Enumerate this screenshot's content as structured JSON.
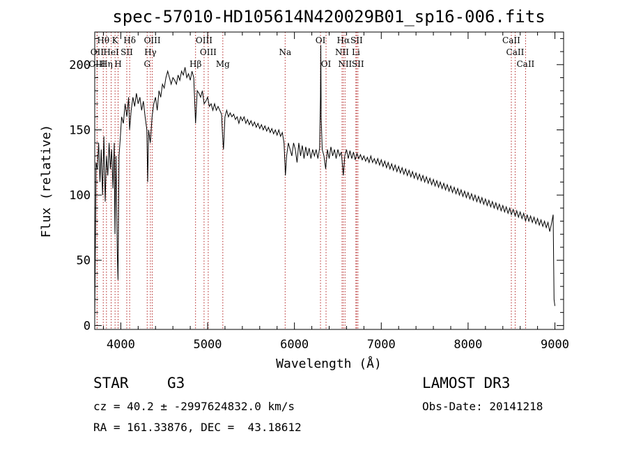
{
  "chart_data": {
    "type": "line",
    "title": "spec-57010-HD105614N420029B01_sp16-006.fits",
    "xlabel": "Wavelength (Å)",
    "ylabel": "Flux (relative)",
    "xlim": [
      3700,
      9100
    ],
    "ylim": [
      -3,
      225
    ],
    "xticks": [
      4000,
      5000,
      6000,
      7000,
      8000,
      9000
    ],
    "yticks": [
      0,
      50,
      100,
      150,
      200
    ],
    "series": [
      {
        "name": "flux",
        "points": [
          [
            3700,
            5
          ],
          [
            3715,
            125
          ],
          [
            3730,
            120
          ],
          [
            3745,
            140
          ],
          [
            3760,
            110
          ],
          [
            3775,
            135
          ],
          [
            3790,
            100
          ],
          [
            3805,
            145
          ],
          [
            3820,
            95
          ],
          [
            3835,
            130
          ],
          [
            3850,
            115
          ],
          [
            3865,
            140
          ],
          [
            3880,
            120
          ],
          [
            3895,
            135
          ],
          [
            3910,
            105
          ],
          [
            3925,
            140
          ],
          [
            3933,
            70
          ],
          [
            3945,
            130
          ],
          [
            3960,
            55
          ],
          [
            3968,
            35
          ],
          [
            3980,
            130
          ],
          [
            3995,
            145
          ],
          [
            4010,
            160
          ],
          [
            4030,
            155
          ],
          [
            4050,
            170
          ],
          [
            4070,
            160
          ],
          [
            4090,
            175
          ],
          [
            4101,
            150
          ],
          [
            4120,
            165
          ],
          [
            4140,
            175
          ],
          [
            4160,
            168
          ],
          [
            4180,
            178
          ],
          [
            4200,
            170
          ],
          [
            4220,
            175
          ],
          [
            4240,
            165
          ],
          [
            4260,
            172
          ],
          [
            4280,
            160
          ],
          [
            4300,
            150
          ],
          [
            4310,
            110
          ],
          [
            4320,
            150
          ],
          [
            4340,
            140
          ],
          [
            4360,
            160
          ],
          [
            4380,
            170
          ],
          [
            4400,
            175
          ],
          [
            4420,
            165
          ],
          [
            4440,
            180
          ],
          [
            4460,
            175
          ],
          [
            4480,
            185
          ],
          [
            4500,
            182
          ],
          [
            4520,
            190
          ],
          [
            4540,
            195
          ],
          [
            4560,
            190
          ],
          [
            4580,
            185
          ],
          [
            4600,
            190
          ],
          [
            4620,
            188
          ],
          [
            4640,
            185
          ],
          [
            4660,
            192
          ],
          [
            4680,
            188
          ],
          [
            4700,
            195
          ],
          [
            4720,
            192
          ],
          [
            4740,
            198
          ],
          [
            4760,
            190
          ],
          [
            4780,
            193
          ],
          [
            4800,
            188
          ],
          [
            4820,
            195
          ],
          [
            4840,
            190
          ],
          [
            4861,
            155
          ],
          [
            4880,
            180
          ],
          [
            4900,
            178
          ],
          [
            4920,
            175
          ],
          [
            4940,
            180
          ],
          [
            4960,
            170
          ],
          [
            4980,
            172
          ],
          [
            5000,
            175
          ],
          [
            5020,
            168
          ],
          [
            5040,
            170
          ],
          [
            5060,
            165
          ],
          [
            5080,
            170
          ],
          [
            5100,
            165
          ],
          [
            5120,
            168
          ],
          [
            5140,
            165
          ],
          [
            5160,
            162
          ],
          [
            5172,
            145
          ],
          [
            5183,
            135
          ],
          [
            5200,
            160
          ],
          [
            5220,
            165
          ],
          [
            5240,
            160
          ],
          [
            5260,
            163
          ],
          [
            5280,
            160
          ],
          [
            5300,
            162
          ],
          [
            5320,
            158
          ],
          [
            5340,
            160
          ],
          [
            5360,
            155
          ],
          [
            5380,
            160
          ],
          [
            5400,
            157
          ],
          [
            5420,
            160
          ],
          [
            5440,
            155
          ],
          [
            5460,
            158
          ],
          [
            5480,
            154
          ],
          [
            5500,
            157
          ],
          [
            5520,
            153
          ],
          [
            5540,
            156
          ],
          [
            5560,
            152
          ],
          [
            5580,
            155
          ],
          [
            5600,
            151
          ],
          [
            5620,
            154
          ],
          [
            5640,
            150
          ],
          [
            5660,
            153
          ],
          [
            5680,
            149
          ],
          [
            5700,
            152
          ],
          [
            5720,
            148
          ],
          [
            5740,
            151
          ],
          [
            5760,
            147
          ],
          [
            5780,
            150
          ],
          [
            5800,
            146
          ],
          [
            5820,
            150
          ],
          [
            5840,
            145
          ],
          [
            5860,
            148
          ],
          [
            5880,
            140
          ],
          [
            5890,
            125
          ],
          [
            5896,
            115
          ],
          [
            5910,
            130
          ],
          [
            5930,
            140
          ],
          [
            5950,
            135
          ],
          [
            5970,
            130
          ],
          [
            5990,
            140
          ],
          [
            6010,
            135
          ],
          [
            6030,
            125
          ],
          [
            6050,
            140
          ],
          [
            6070,
            130
          ],
          [
            6090,
            138
          ],
          [
            6110,
            128
          ],
          [
            6130,
            137
          ],
          [
            6150,
            130
          ],
          [
            6170,
            136
          ],
          [
            6190,
            128
          ],
          [
            6210,
            135
          ],
          [
            6230,
            130
          ],
          [
            6250,
            135
          ],
          [
            6270,
            128
          ],
          [
            6290,
            136
          ],
          [
            6300,
            175
          ],
          [
            6304,
            215
          ],
          [
            6308,
            160
          ],
          [
            6320,
            135
          ],
          [
            6340,
            130
          ],
          [
            6360,
            120
          ],
          [
            6380,
            135
          ],
          [
            6400,
            128
          ],
          [
            6420,
            137
          ],
          [
            6440,
            130
          ],
          [
            6460,
            135
          ],
          [
            6480,
            128
          ],
          [
            6500,
            135
          ],
          [
            6520,
            130
          ],
          [
            6540,
            133
          ],
          [
            6563,
            115
          ],
          [
            6580,
            130
          ],
          [
            6600,
            135
          ],
          [
            6620,
            128
          ],
          [
            6640,
            134
          ],
          [
            6660,
            128
          ],
          [
            6680,
            133
          ],
          [
            6700,
            127
          ],
          [
            6720,
            132
          ],
          [
            6740,
            128
          ],
          [
            6760,
            131
          ],
          [
            6780,
            127
          ],
          [
            6800,
            130
          ],
          [
            6820,
            126
          ],
          [
            6840,
            129
          ],
          [
            6860,
            125
          ],
          [
            6880,
            130
          ],
          [
            6900,
            125
          ],
          [
            6920,
            128
          ],
          [
            6940,
            124
          ],
          [
            6960,
            128
          ],
          [
            6980,
            123
          ],
          [
            7000,
            127
          ],
          [
            7020,
            122
          ],
          [
            7040,
            126
          ],
          [
            7060,
            121
          ],
          [
            7080,
            125
          ],
          [
            7100,
            120
          ],
          [
            7120,
            124
          ],
          [
            7140,
            119
          ],
          [
            7160,
            123
          ],
          [
            7180,
            118
          ],
          [
            7200,
            122
          ],
          [
            7220,
            117
          ],
          [
            7240,
            121
          ],
          [
            7260,
            116
          ],
          [
            7280,
            120
          ],
          [
            7300,
            115
          ],
          [
            7320,
            119
          ],
          [
            7340,
            114
          ],
          [
            7360,
            118
          ],
          [
            7380,
            113
          ],
          [
            7400,
            117
          ],
          [
            7420,
            112
          ],
          [
            7440,
            116
          ],
          [
            7460,
            111
          ],
          [
            7480,
            115
          ],
          [
            7500,
            110
          ],
          [
            7520,
            114
          ],
          [
            7540,
            109
          ],
          [
            7560,
            113
          ],
          [
            7580,
            108
          ],
          [
            7600,
            112
          ],
          [
            7620,
            107
          ],
          [
            7640,
            111
          ],
          [
            7660,
            106
          ],
          [
            7680,
            110
          ],
          [
            7700,
            105
          ],
          [
            7720,
            109
          ],
          [
            7740,
            104
          ],
          [
            7760,
            108
          ],
          [
            7780,
            103
          ],
          [
            7800,
            107
          ],
          [
            7820,
            102
          ],
          [
            7840,
            106
          ],
          [
            7860,
            101
          ],
          [
            7880,
            105
          ],
          [
            7900,
            100
          ],
          [
            7920,
            104
          ],
          [
            7940,
            99
          ],
          [
            7960,
            103
          ],
          [
            7980,
            98
          ],
          [
            8000,
            102
          ],
          [
            8020,
            97
          ],
          [
            8040,
            101
          ],
          [
            8060,
            96
          ],
          [
            8080,
            100
          ],
          [
            8100,
            95
          ],
          [
            8120,
            99
          ],
          [
            8140,
            94
          ],
          [
            8160,
            98
          ],
          [
            8180,
            93
          ],
          [
            8200,
            97
          ],
          [
            8220,
            92
          ],
          [
            8240,
            96
          ],
          [
            8260,
            91
          ],
          [
            8280,
            95
          ],
          [
            8300,
            90
          ],
          [
            8320,
            94
          ],
          [
            8340,
            89
          ],
          [
            8360,
            93
          ],
          [
            8380,
            88
          ],
          [
            8400,
            92
          ],
          [
            8420,
            87
          ],
          [
            8440,
            91
          ],
          [
            8460,
            86
          ],
          [
            8480,
            90
          ],
          [
            8498,
            85
          ],
          [
            8520,
            89
          ],
          [
            8542,
            84
          ],
          [
            8560,
            88
          ],
          [
            8580,
            83
          ],
          [
            8600,
            87
          ],
          [
            8620,
            82
          ],
          [
            8640,
            86
          ],
          [
            8662,
            80
          ],
          [
            8680,
            85
          ],
          [
            8700,
            80
          ],
          [
            8720,
            84
          ],
          [
            8740,
            79
          ],
          [
            8760,
            83
          ],
          [
            8780,
            78
          ],
          [
            8800,
            82
          ],
          [
            8820,
            77
          ],
          [
            8840,
            81
          ],
          [
            8860,
            76
          ],
          [
            8880,
            80
          ],
          [
            8900,
            75
          ],
          [
            8920,
            79
          ],
          [
            8940,
            72
          ],
          [
            8960,
            78
          ],
          [
            8980,
            85
          ],
          [
            8990,
            20
          ],
          [
            9000,
            15
          ]
        ]
      }
    ],
    "spectral_lines": [
      {
        "name": "Hθ",
        "wavelength": 3798,
        "row": 1
      },
      {
        "name": "K",
        "wavelength": 3934,
        "row": 1
      },
      {
        "name": "Hδ",
        "wavelength": 4102,
        "row": 1
      },
      {
        "name": "OIII",
        "wavelength": 4363,
        "row": 1
      },
      {
        "name": "OIII",
        "wavelength": 4959,
        "row": 1
      },
      {
        "name": "OI",
        "wavelength": 6300,
        "row": 1
      },
      {
        "name": "Hα",
        "wavelength": 6563,
        "row": 1
      },
      {
        "name": "SII",
        "wavelength": 6716,
        "row": 1
      },
      {
        "name": "CaII",
        "wavelength": 8498,
        "row": 1
      },
      {
        "name": "OII",
        "wavelength": 3727,
        "row": 2
      },
      {
        "name": "HeI",
        "wavelength": 3889,
        "row": 2
      },
      {
        "name": "SII",
        "wavelength": 4069,
        "row": 2
      },
      {
        "name": "Hγ",
        "wavelength": 4341,
        "row": 2
      },
      {
        "name": "OIII",
        "wavelength": 5007,
        "row": 2
      },
      {
        "name": "Na",
        "wavelength": 5893,
        "row": 2
      },
      {
        "name": "NII",
        "wavelength": 6548,
        "row": 2
      },
      {
        "name": "Li",
        "wavelength": 6708,
        "row": 2
      },
      {
        "name": "CaII",
        "wavelength": 8542,
        "row": 2
      },
      {
        "name": "OIII",
        "wavelength": 3727,
        "row": 3
      },
      {
        "name": "Hη",
        "wavelength": 3835,
        "row": 3
      },
      {
        "name": "H",
        "wavelength": 3969,
        "row": 3
      },
      {
        "name": "G",
        "wavelength": 4304,
        "row": 3
      },
      {
        "name": "Hβ",
        "wavelength": 4861,
        "row": 3
      },
      {
        "name": "Mg",
        "wavelength": 5175,
        "row": 3
      },
      {
        "name": "OI",
        "wavelength": 6364,
        "row": 3
      },
      {
        "name": "NII",
        "wavelength": 6583,
        "row": 3
      },
      {
        "name": "SII",
        "wavelength": 6731,
        "row": 3
      },
      {
        "name": "CaII",
        "wavelength": 8662,
        "row": 3
      }
    ]
  },
  "info": {
    "object_class": "STAR",
    "subclass": "G3",
    "survey": "LAMOST DR3",
    "redshift": "cz = 40.2 ± -2997624832.0 km/s",
    "obs_date": "Obs-Date: 20141218",
    "coords": "RA = 161.33876, DEC =  43.18612"
  }
}
